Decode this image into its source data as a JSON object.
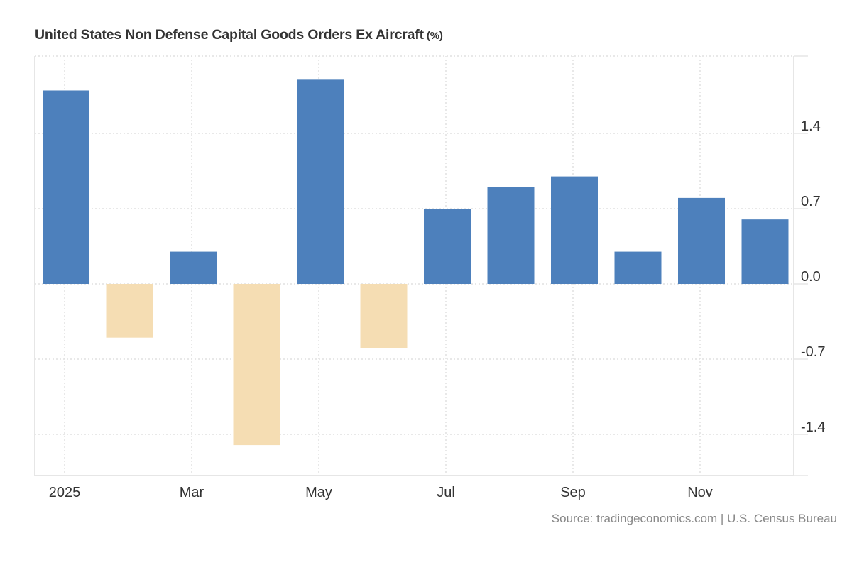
{
  "chart_data": {
    "type": "bar",
    "title": "United States Non Defense Capital Goods Orders Ex Aircraft",
    "title_unit": "(%)",
    "xlabel": "",
    "ylabel": "",
    "categories": [
      "Jan 2025",
      "Feb 2025",
      "Mar 2025",
      "Apr 2025",
      "May 2025",
      "Jun 2025",
      "Jul 2025",
      "Aug 2025",
      "Sep 2025",
      "Oct 2025",
      "Nov 2025",
      "Dec 2025"
    ],
    "values": [
      1.8,
      -0.5,
      0.3,
      -1.5,
      1.9,
      -0.6,
      0.7,
      0.9,
      1.0,
      0.3,
      0.8,
      0.6
    ],
    "x_tick_labels": [
      {
        "label": "2025",
        "index": 0
      },
      {
        "label": "Mar",
        "index": 2
      },
      {
        "label": "May",
        "index": 4
      },
      {
        "label": "Jul",
        "index": 6
      },
      {
        "label": "Sep",
        "index": 8
      },
      {
        "label": "Nov",
        "index": 10
      }
    ],
    "y_ticks": [
      1.4,
      0.7,
      0.0,
      -0.7,
      -1.4
    ],
    "y_tick_labels": [
      "1.4",
      "0.7",
      "0.0",
      "-0.7",
      "-1.4"
    ],
    "ylim": [
      -1.79,
      2.12
    ],
    "y_axis_position": "right",
    "grid": true,
    "legend": "none",
    "colors": {
      "positive": "#4d80bc",
      "negative": "#f5ddb3",
      "grid": "#e0e0e0",
      "axis": "#e6e6e6",
      "tick_text": "#333333"
    },
    "source": "Source: tradingeconomics.com | U.S. Census Bureau"
  }
}
